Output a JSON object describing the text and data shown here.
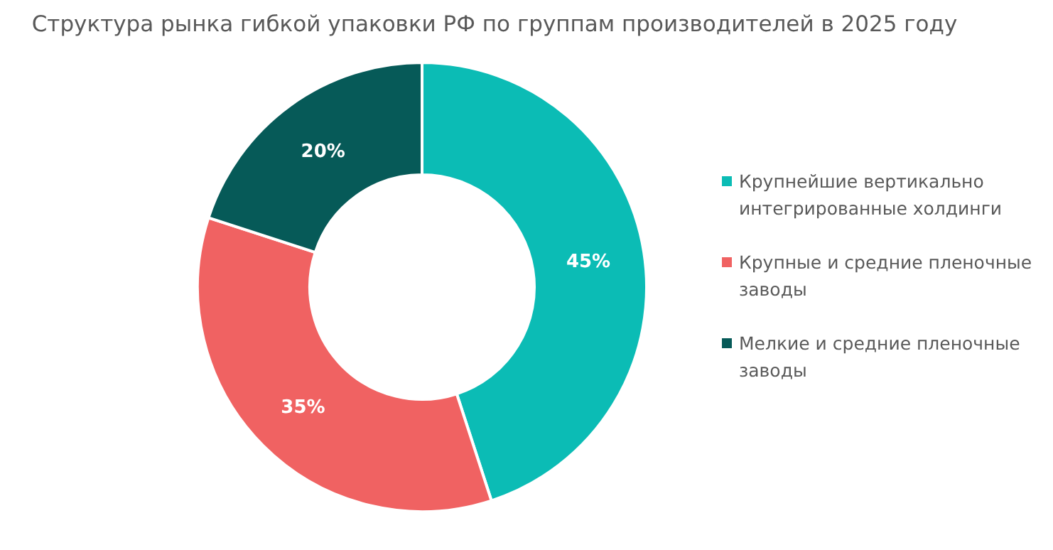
{
  "chart_data": {
    "type": "donut",
    "title": "Структура рынка гибкой упаковки РФ по группам производителей в 2025  году",
    "categories": [
      "Крупнейшие вертикально интегрированные холдинги",
      "Крупные и средние пленочные заводы",
      "Мелкие и средние пленочные заводы"
    ],
    "values": [
      45,
      35,
      20
    ],
    "colors": [
      "#0bbcb5",
      "#f06262",
      "#065a58"
    ],
    "value_labels": [
      "45%",
      "35%",
      "20%"
    ],
    "legend": "right"
  }
}
